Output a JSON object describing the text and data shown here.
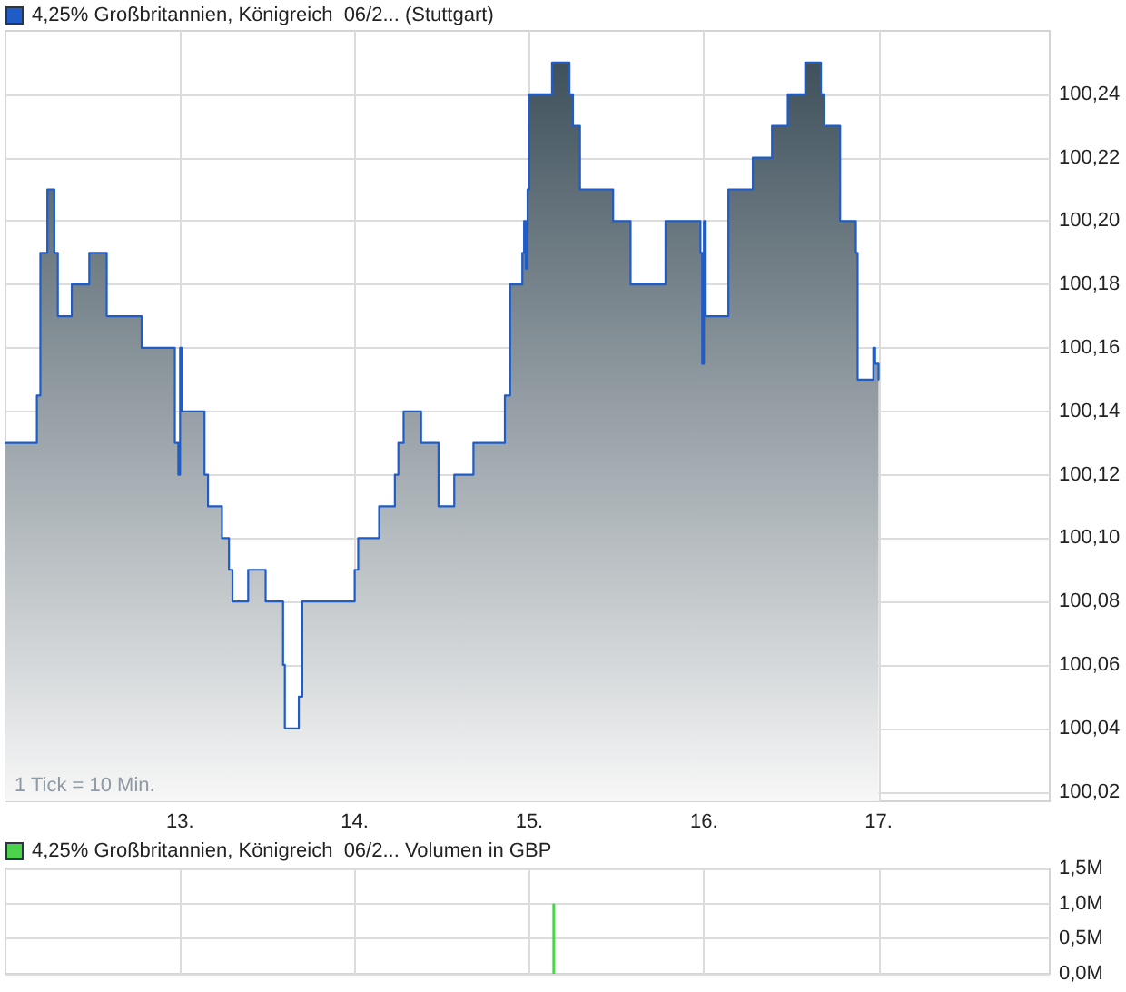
{
  "chart_data": [
    {
      "type": "area",
      "series": [
        {
          "name": "4,25% Großbritannien, Königreich  06/2... (Stuttgart)",
          "color": "#1f5cc6",
          "x": [
            12.0,
            12.18,
            12.18,
            12.2,
            12.2,
            12.24,
            12.24,
            12.28,
            12.28,
            12.3,
            12.3,
            12.38,
            12.38,
            12.48,
            12.48,
            12.58,
            12.58,
            12.78,
            12.78,
            12.97,
            12.97,
            12.99,
            12.99,
            13.0,
            13.0,
            13.01,
            13.01,
            13.14,
            13.14,
            13.16,
            13.16,
            13.24,
            13.24,
            13.28,
            13.28,
            13.3,
            13.3,
            13.39,
            13.39,
            13.49,
            13.49,
            13.59,
            13.59,
            13.6,
            13.6,
            13.68,
            13.68,
            13.7,
            13.7,
            14.0,
            14.0,
            14.02,
            14.02,
            14.14,
            14.14,
            14.23,
            14.23,
            14.25,
            14.25,
            14.28,
            14.28,
            14.38,
            14.38,
            14.48,
            14.48,
            14.57,
            14.57,
            14.68,
            14.68,
            14.86,
            14.86,
            14.89,
            14.89,
            14.96,
            14.96,
            14.97,
            14.97,
            14.98,
            14.98,
            14.99,
            14.99,
            15.0,
            15.0,
            15.13,
            15.13,
            15.23,
            15.23,
            15.25,
            15.25,
            15.29,
            15.29,
            15.48,
            15.48,
            15.58,
            15.58,
            15.78,
            15.78,
            15.98,
            15.98,
            15.99,
            15.99,
            16.0,
            16.0,
            16.01,
            16.01,
            16.14,
            16.14,
            16.28,
            16.28,
            16.39,
            16.39,
            16.48,
            16.48,
            16.58,
            16.58,
            16.67,
            16.67,
            16.69,
            16.69,
            16.78,
            16.78,
            16.87,
            16.87,
            16.88,
            16.88,
            16.97,
            16.97,
            16.98,
            16.98,
            17.0,
            17.0
          ],
          "values": [
            100.13,
            100.13,
            100.145,
            100.145,
            100.19,
            100.19,
            100.21,
            100.21,
            100.19,
            100.19,
            100.17,
            100.17,
            100.18,
            100.18,
            100.19,
            100.19,
            100.17,
            100.17,
            100.16,
            100.16,
            100.13,
            100.13,
            100.12,
            100.12,
            100.16,
            100.16,
            100.14,
            100.14,
            100.12,
            100.12,
            100.11,
            100.11,
            100.1,
            100.1,
            100.09,
            100.09,
            100.08,
            100.08,
            100.09,
            100.09,
            100.08,
            100.08,
            100.06,
            100.06,
            100.04,
            100.04,
            100.05,
            100.05,
            100.08,
            100.08,
            100.09,
            100.09,
            100.1,
            100.1,
            100.11,
            100.11,
            100.12,
            100.12,
            100.13,
            100.13,
            100.14,
            100.14,
            100.13,
            100.13,
            100.11,
            100.11,
            100.12,
            100.12,
            100.13,
            100.13,
            100.145,
            100.145,
            100.18,
            100.18,
            100.19,
            100.19,
            100.2,
            100.2,
            100.185,
            100.185,
            100.21,
            100.21,
            100.24,
            100.24,
            100.25,
            100.25,
            100.24,
            100.24,
            100.23,
            100.23,
            100.21,
            100.21,
            100.2,
            100.2,
            100.18,
            100.18,
            100.2,
            100.2,
            100.19,
            100.19,
            100.155,
            100.155,
            100.2,
            100.2,
            100.17,
            100.17,
            100.21,
            100.21,
            100.22,
            100.22,
            100.23,
            100.23,
            100.24,
            100.24,
            100.25,
            100.25,
            100.24,
            100.24,
            100.23,
            100.23,
            100.2,
            100.2,
            100.19,
            100.19,
            100.15,
            100.15,
            100.16,
            100.16,
            100.155,
            100.155,
            100.15
          ]
        }
      ],
      "xlim": [
        12,
        17.98
      ],
      "xticks": [
        {
          "value": 13,
          "label": "13."
        },
        {
          "value": 14,
          "label": "14."
        },
        {
          "value": 15,
          "label": "15."
        },
        {
          "value": 16,
          "label": "16."
        },
        {
          "value": 17,
          "label": "17."
        }
      ],
      "ylim": [
        100.017,
        100.26
      ],
      "yticks": [
        {
          "value": 100.02,
          "label": "100,02"
        },
        {
          "value": 100.04,
          "label": "100,04"
        },
        {
          "value": 100.06,
          "label": "100,06"
        },
        {
          "value": 100.08,
          "label": "100,08"
        },
        {
          "value": 100.1,
          "label": "100,10"
        },
        {
          "value": 100.12,
          "label": "100,12"
        },
        {
          "value": 100.14,
          "label": "100,14"
        },
        {
          "value": 100.16,
          "label": "100,16"
        },
        {
          "value": 100.18,
          "label": "100,18"
        },
        {
          "value": 100.2,
          "label": "100,20"
        },
        {
          "value": 100.22,
          "label": "100,22"
        },
        {
          "value": 100.24,
          "label": "100,24"
        }
      ],
      "grid": true,
      "legend": "top left",
      "annotations": [
        "1 Tick = 10 Min."
      ]
    },
    {
      "type": "bar",
      "series": [
        {
          "name": "4,25% Großbritannien, Königreich  06/2... Volumen in GBP",
          "color": "#4cd34c",
          "x": [
            15.14
          ],
          "values": [
            1000000
          ]
        }
      ],
      "xlim": [
        12,
        17.98
      ],
      "xticks": [
        {
          "value": 13,
          "label": null
        },
        {
          "value": 14,
          "label": null
        },
        {
          "value": 15,
          "label": null
        },
        {
          "value": 16,
          "label": null
        },
        {
          "value": 17,
          "label": null
        }
      ],
      "ylim": [
        0,
        1500000
      ],
      "yticks": [
        {
          "value": 0,
          "label": "0,0M"
        },
        {
          "value": 500000,
          "label": "0,5M"
        },
        {
          "value": 1000000,
          "label": "1,0M"
        },
        {
          "value": 1500000,
          "label": "1,5M"
        }
      ],
      "grid": true,
      "legend": "top left",
      "tick_labels": "y"
    }
  ]
}
